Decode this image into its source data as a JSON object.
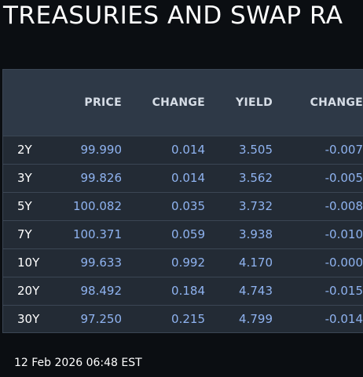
{
  "title": "TREASURIES AND SWAP RA",
  "columns": [
    "",
    "PRICE",
    "CHANGE",
    "YIELD",
    "CHANGE"
  ],
  "rows": [
    {
      "tenor": "2Y",
      "price": "99.990",
      "price_change": "0.014",
      "yield": "3.505",
      "yield_change": "-0.007"
    },
    {
      "tenor": "3Y",
      "price": "99.826",
      "price_change": "0.014",
      "yield": "3.562",
      "yield_change": "-0.005"
    },
    {
      "tenor": "5Y",
      "price": "100.082",
      "price_change": "0.035",
      "yield": "3.732",
      "yield_change": "-0.008"
    },
    {
      "tenor": "7Y",
      "price": "100.371",
      "price_change": "0.059",
      "yield": "3.938",
      "yield_change": "-0.010"
    },
    {
      "tenor": "10Y",
      "price": "99.633",
      "price_change": "0.992",
      "yield": "4.170",
      "yield_change": "-0.000"
    },
    {
      "tenor": "20Y",
      "price": "98.492",
      "price_change": "0.184",
      "yield": "4.743",
      "yield_change": "-0.015"
    },
    {
      "tenor": "30Y",
      "price": "97.250",
      "price_change": "0.215",
      "yield": "4.799",
      "yield_change": "-0.014"
    }
  ],
  "timestamp": "12 Feb 2026 06:48 EST",
  "colors": {
    "background": "#0b0e12",
    "panel": "#232b35",
    "header": "#2e3947",
    "value": "#8fb3f0",
    "text": "#ffffff"
  }
}
